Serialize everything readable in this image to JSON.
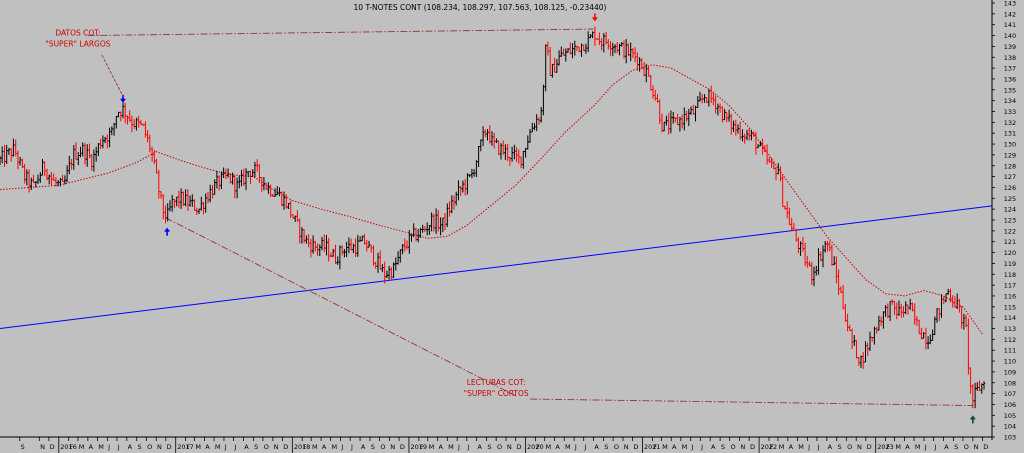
{
  "chart_data": {
    "type": "candlestick",
    "title": "10 T-NOTES CONT (108.234, 108.297, 107.563, 108.125, -0.23440)",
    "y_range": [
      103,
      143
    ],
    "x_range": [
      "2015-07-01",
      "2023-12-31"
    ],
    "y_ticks": [
      103,
      104,
      105,
      106,
      107,
      108,
      109,
      110,
      111,
      112,
      113,
      114,
      115,
      116,
      117,
      118,
      119,
      120,
      121,
      122,
      123,
      124,
      125,
      126,
      127,
      128,
      129,
      130,
      131,
      132,
      133,
      134,
      135,
      136,
      137,
      138,
      139,
      140,
      141,
      142,
      143
    ],
    "x_month_labels": [
      {
        "d": "2015-09-01",
        "t": "S"
      },
      {
        "d": "2015-11-01",
        "t": "N"
      },
      {
        "d": "2015-12-01",
        "t": "D"
      },
      {
        "d": "2016-01-01",
        "t": "2016"
      },
      {
        "d": "2016-02-01",
        "t": "F"
      },
      {
        "d": "2016-03-01",
        "t": "M"
      },
      {
        "d": "2016-04-01",
        "t": "A"
      },
      {
        "d": "2016-05-01",
        "t": "M"
      },
      {
        "d": "2016-06-01",
        "t": "J"
      },
      {
        "d": "2016-07-01",
        "t": "J"
      },
      {
        "d": "2016-08-01",
        "t": "A"
      },
      {
        "d": "2016-09-01",
        "t": "S"
      },
      {
        "d": "2016-10-01",
        "t": "O"
      },
      {
        "d": "2016-11-01",
        "t": "N"
      },
      {
        "d": "2016-12-01",
        "t": "D"
      },
      {
        "d": "2017-01-01",
        "t": "2017"
      },
      {
        "d": "2017-02-01",
        "t": "F"
      },
      {
        "d": "2017-03-01",
        "t": "M"
      },
      {
        "d": "2017-04-01",
        "t": "A"
      },
      {
        "d": "2017-05-01",
        "t": "M"
      },
      {
        "d": "2017-06-01",
        "t": "J"
      },
      {
        "d": "2017-07-01",
        "t": "J"
      },
      {
        "d": "2017-08-01",
        "t": "A"
      },
      {
        "d": "2017-09-01",
        "t": "S"
      },
      {
        "d": "2017-10-01",
        "t": "O"
      },
      {
        "d": "2017-11-01",
        "t": "N"
      },
      {
        "d": "2017-12-01",
        "t": "D"
      },
      {
        "d": "2018-01-01",
        "t": "2018"
      },
      {
        "d": "2018-02-01",
        "t": "F"
      },
      {
        "d": "2018-03-01",
        "t": "M"
      },
      {
        "d": "2018-04-01",
        "t": "A"
      },
      {
        "d": "2018-05-01",
        "t": "M"
      },
      {
        "d": "2018-06-01",
        "t": "J"
      },
      {
        "d": "2018-07-01",
        "t": "J"
      },
      {
        "d": "2018-08-01",
        "t": "A"
      },
      {
        "d": "2018-09-01",
        "t": "S"
      },
      {
        "d": "2018-10-01",
        "t": "O"
      },
      {
        "d": "2018-11-01",
        "t": "N"
      },
      {
        "d": "2018-12-01",
        "t": "D"
      },
      {
        "d": "2019-01-01",
        "t": "2019"
      },
      {
        "d": "2019-02-01",
        "t": "F"
      },
      {
        "d": "2019-03-01",
        "t": "M"
      },
      {
        "d": "2019-04-01",
        "t": "A"
      },
      {
        "d": "2019-05-01",
        "t": "M"
      },
      {
        "d": "2019-06-01",
        "t": "J"
      },
      {
        "d": "2019-07-01",
        "t": "J"
      },
      {
        "d": "2019-08-01",
        "t": "A"
      },
      {
        "d": "2019-09-01",
        "t": "S"
      },
      {
        "d": "2019-10-01",
        "t": "O"
      },
      {
        "d": "2019-11-01",
        "t": "N"
      },
      {
        "d": "2019-12-01",
        "t": "D"
      },
      {
        "d": "2020-01-01",
        "t": "2020"
      },
      {
        "d": "2020-02-01",
        "t": "F"
      },
      {
        "d": "2020-03-01",
        "t": "M"
      },
      {
        "d": "2020-04-01",
        "t": "A"
      },
      {
        "d": "2020-05-01",
        "t": "M"
      },
      {
        "d": "2020-06-01",
        "t": "J"
      },
      {
        "d": "2020-07-01",
        "t": "J"
      },
      {
        "d": "2020-08-01",
        "t": "A"
      },
      {
        "d": "2020-09-01",
        "t": "S"
      },
      {
        "d": "2020-10-01",
        "t": "O"
      },
      {
        "d": "2020-11-01",
        "t": "N"
      },
      {
        "d": "2020-12-01",
        "t": "D"
      },
      {
        "d": "2021-01-01",
        "t": "2021"
      },
      {
        "d": "2021-02-01",
        "t": "F"
      },
      {
        "d": "2021-03-01",
        "t": "M"
      },
      {
        "d": "2021-04-01",
        "t": "A"
      },
      {
        "d": "2021-05-01",
        "t": "M"
      },
      {
        "d": "2021-06-01",
        "t": "J"
      },
      {
        "d": "2021-07-01",
        "t": "J"
      },
      {
        "d": "2021-08-01",
        "t": "A"
      },
      {
        "d": "2021-09-01",
        "t": "S"
      },
      {
        "d": "2021-10-01",
        "t": "O"
      },
      {
        "d": "2021-11-01",
        "t": "N"
      },
      {
        "d": "2021-12-01",
        "t": "D"
      },
      {
        "d": "2022-01-01",
        "t": "2022"
      },
      {
        "d": "2022-02-01",
        "t": "F"
      },
      {
        "d": "2022-03-01",
        "t": "M"
      },
      {
        "d": "2022-04-01",
        "t": "A"
      },
      {
        "d": "2022-05-01",
        "t": "M"
      },
      {
        "d": "2022-06-01",
        "t": "J"
      },
      {
        "d": "2022-07-01",
        "t": "J"
      },
      {
        "d": "2022-08-01",
        "t": "A"
      },
      {
        "d": "2022-09-01",
        "t": "S"
      },
      {
        "d": "2022-10-01",
        "t": "O"
      },
      {
        "d": "2022-11-01",
        "t": "N"
      },
      {
        "d": "2022-12-01",
        "t": "D"
      },
      {
        "d": "2023-01-01",
        "t": "2023"
      },
      {
        "d": "2023-02-01",
        "t": "F"
      },
      {
        "d": "2023-03-01",
        "t": "M"
      },
      {
        "d": "2023-04-01",
        "t": "A"
      },
      {
        "d": "2023-05-01",
        "t": "M"
      },
      {
        "d": "2023-06-01",
        "t": "J"
      },
      {
        "d": "2023-07-01",
        "t": "J"
      },
      {
        "d": "2023-08-01",
        "t": "A"
      },
      {
        "d": "2023-09-01",
        "t": "S"
      },
      {
        "d": "2023-10-01",
        "t": "O"
      },
      {
        "d": "2023-11-01",
        "t": "N"
      },
      {
        "d": "2023-12-01",
        "t": "D"
      }
    ],
    "price_path": [
      [
        "2015-07-01",
        128.5
      ],
      [
        "2015-08-15",
        129.5
      ],
      [
        "2015-09-15",
        127.0
      ],
      [
        "2015-10-15",
        126.0
      ],
      [
        "2015-11-15",
        128.0
      ],
      [
        "2015-12-15",
        126.5
      ],
      [
        "2016-01-15",
        126.0
      ],
      [
        "2016-02-15",
        129.0
      ],
      [
        "2016-03-15",
        129.5
      ],
      [
        "2016-04-15",
        128.5
      ],
      [
        "2016-05-15",
        130.5
      ],
      [
        "2016-06-15",
        131.0
      ],
      [
        "2016-07-01",
        133.0
      ],
      [
        "2016-07-20",
        133.2
      ],
      [
        "2016-08-20",
        132.0
      ],
      [
        "2016-09-20",
        131.5
      ],
      [
        "2016-10-15",
        129.5
      ],
      [
        "2016-11-01",
        127.0
      ],
      [
        "2016-11-20",
        124.0
      ],
      [
        "2016-12-05",
        123.2
      ],
      [
        "2016-12-20",
        124.5
      ],
      [
        "2017-01-15",
        125.0
      ],
      [
        "2017-02-15",
        124.5
      ],
      [
        "2017-03-15",
        124.0
      ],
      [
        "2017-04-15",
        125.5
      ],
      [
        "2017-05-15",
        126.5
      ],
      [
        "2017-06-15",
        127.0
      ],
      [
        "2017-07-15",
        126.0
      ],
      [
        "2017-08-15",
        127.5
      ],
      [
        "2017-09-10",
        127.5
      ],
      [
        "2017-10-15",
        126.0
      ],
      [
        "2017-11-15",
        125.5
      ],
      [
        "2017-12-15",
        124.5
      ],
      [
        "2018-01-15",
        122.5
      ],
      [
        "2018-02-15",
        121.0
      ],
      [
        "2018-03-15",
        120.5
      ],
      [
        "2018-04-15",
        120.5
      ],
      [
        "2018-05-15",
        119.5
      ],
      [
        "2018-06-15",
        120.5
      ],
      [
        "2018-07-15",
        120.5
      ],
      [
        "2018-08-15",
        121.0
      ],
      [
        "2018-09-15",
        119.5
      ],
      [
        "2018-10-15",
        118.0
      ],
      [
        "2018-11-15",
        118.5
      ],
      [
        "2018-12-15",
        120.5
      ],
      [
        "2019-01-15",
        121.5
      ],
      [
        "2019-02-15",
        122.0
      ],
      [
        "2019-03-15",
        123.0
      ],
      [
        "2019-04-15",
        122.5
      ],
      [
        "2019-05-15",
        124.5
      ],
      [
        "2019-06-15",
        126.0
      ],
      [
        "2019-07-15",
        127.0
      ],
      [
        "2019-08-15",
        130.0
      ],
      [
        "2019-09-01",
        131.5
      ],
      [
        "2019-09-20",
        130.0
      ],
      [
        "2019-10-15",
        129.5
      ],
      [
        "2019-11-15",
        129.0
      ],
      [
        "2019-12-15",
        128.5
      ],
      [
        "2020-01-20",
        131.5
      ],
      [
        "2020-02-20",
        133.0
      ],
      [
        "2020-03-05",
        139.0
      ],
      [
        "2020-03-20",
        136.5
      ],
      [
        "2020-04-15",
        138.0
      ],
      [
        "2020-05-15",
        138.5
      ],
      [
        "2020-06-15",
        139.0
      ],
      [
        "2020-07-15",
        139.5
      ],
      [
        "2020-08-05",
        140.2
      ],
      [
        "2020-08-25",
        139.5
      ],
      [
        "2020-09-15",
        139.5
      ],
      [
        "2020-10-15",
        139.0
      ],
      [
        "2020-11-15",
        138.5
      ],
      [
        "2020-12-15",
        138.0
      ],
      [
        "2021-01-15",
        136.5
      ],
      [
        "2021-02-15",
        134.0
      ],
      [
        "2021-03-05",
        131.5
      ],
      [
        "2021-04-15",
        132.0
      ],
      [
        "2021-05-15",
        132.5
      ],
      [
        "2021-06-15",
        133.0
      ],
      [
        "2021-07-15",
        134.5
      ],
      [
        "2021-08-15",
        134.0
      ],
      [
        "2021-09-15",
        132.5
      ],
      [
        "2021-10-15",
        131.5
      ],
      [
        "2021-11-15",
        131.0
      ],
      [
        "2021-12-15",
        130.5
      ],
      [
        "2022-01-15",
        129.0
      ],
      [
        "2022-02-15",
        127.5
      ],
      [
        "2022-03-01",
        128.0
      ],
      [
        "2022-03-15",
        125.0
      ],
      [
        "2022-04-15",
        122.0
      ],
      [
        "2022-05-15",
        120.0
      ],
      [
        "2022-06-15",
        118.0
      ],
      [
        "2022-07-15",
        120.0
      ],
      [
        "2022-08-01",
        121.0
      ],
      [
        "2022-08-20",
        119.0
      ],
      [
        "2022-09-15",
        116.0
      ],
      [
        "2022-10-15",
        112.0
      ],
      [
        "2022-11-15",
        110.0
      ],
      [
        "2022-12-15",
        112.0
      ],
      [
        "2023-01-15",
        114.0
      ],
      [
        "2023-02-15",
        115.0
      ],
      [
        "2023-03-15",
        114.5
      ],
      [
        "2023-04-15",
        115.0
      ],
      [
        "2023-05-15",
        113.0
      ],
      [
        "2023-06-15",
        112.0
      ],
      [
        "2023-07-15",
        114.5
      ],
      [
        "2023-08-15",
        116.5
      ],
      [
        "2023-09-15",
        115.0
      ],
      [
        "2023-10-15",
        112.5
      ],
      [
        "2023-10-20",
        108.0
      ],
      [
        "2023-11-01",
        106.5
      ],
      [
        "2023-11-20",
        107.5
      ],
      [
        "2023-12-10",
        108.125
      ]
    ],
    "moving_average": [
      [
        "2015-07-01",
        125.8
      ],
      [
        "2016-01-01",
        126.2
      ],
      [
        "2016-06-01",
        127.3
      ],
      [
        "2016-09-01",
        128.3
      ],
      [
        "2016-11-01",
        129.3
      ],
      [
        "2017-01-15",
        128.5
      ],
      [
        "2017-04-01",
        127.8
      ],
      [
        "2017-06-15",
        127.2
      ],
      [
        "2017-09-01",
        127.0
      ],
      [
        "2017-11-01",
        125.8
      ],
      [
        "2018-01-01",
        124.8
      ],
      [
        "2018-04-01",
        124.0
      ],
      [
        "2018-07-01",
        123.3
      ],
      [
        "2018-10-01",
        122.5
      ],
      [
        "2019-01-01",
        121.8
      ],
      [
        "2019-03-01",
        121.3
      ],
      [
        "2019-05-01",
        121.5
      ],
      [
        "2019-07-01",
        122.5
      ],
      [
        "2019-09-01",
        124.0
      ],
      [
        "2019-12-01",
        126.2
      ],
      [
        "2020-03-01",
        129.0
      ],
      [
        "2020-05-01",
        131.0
      ],
      [
        "2020-08-01",
        133.5
      ],
      [
        "2020-10-01",
        135.5
      ],
      [
        "2020-12-01",
        136.8
      ],
      [
        "2021-02-01",
        137.3
      ],
      [
        "2021-04-01",
        137.0
      ],
      [
        "2021-06-01",
        136.0
      ],
      [
        "2021-08-01",
        135.0
      ],
      [
        "2021-10-01",
        133.5
      ],
      [
        "2021-12-01",
        131.5
      ],
      [
        "2022-02-01",
        129.0
      ],
      [
        "2022-04-01",
        126.5
      ],
      [
        "2022-06-01",
        124.0
      ],
      [
        "2022-08-01",
        121.5
      ],
      [
        "2022-10-01",
        119.5
      ],
      [
        "2022-12-01",
        117.5
      ],
      [
        "2023-02-01",
        116.2
      ],
      [
        "2023-04-01",
        116.0
      ],
      [
        "2023-06-01",
        116.5
      ],
      [
        "2023-08-01",
        116.0
      ],
      [
        "2023-10-01",
        115.0
      ],
      [
        "2023-12-01",
        112.5
      ]
    ],
    "trend_line": [
      [
        "2015-07-01",
        113.0
      ],
      [
        "2023-12-31",
        124.3
      ]
    ],
    "guide_lines": [
      {
        "name": "top",
        "from": [
          "2016-04-01",
          140.0
        ],
        "to": [
          "2020-08-01",
          140.6
        ]
      },
      {
        "name": "bottom",
        "from": [
          "2020-01-15",
          106.5
        ],
        "to": [
          "2023-11-01",
          105.9
        ]
      },
      {
        "name": "diagonal",
        "from": [
          "2016-12-01",
          123.2
        ],
        "to": [
          "2019-12-01",
          106.8
        ]
      }
    ],
    "arrows": [
      {
        "name": "blue-down",
        "date": "2016-07-20",
        "price": 133.9,
        "dir": "down",
        "color": "#0000ff"
      },
      {
        "name": "blue-up",
        "date": "2016-12-05",
        "price": 122.2,
        "dir": "up",
        "color": "#0000ff"
      },
      {
        "name": "red-down",
        "date": "2020-08-05",
        "price": 141.4,
        "dir": "down",
        "color": "#ff0000"
      },
      {
        "name": "green-up",
        "date": "2023-11-01",
        "price": 104.9,
        "dir": "up",
        "color": "#004d40"
      }
    ],
    "annotations": [
      {
        "lines": [
          "DATOS COT:",
          "\"SUPER\" LARGOS"
        ],
        "date": "2016-03-01",
        "price": 140.0,
        "anchor": "middle",
        "color": "#cc0000"
      },
      {
        "lines": [
          "LECTURAS COT:",
          "\"SUPER\" CORTOS"
        ],
        "date": "2019-10-01",
        "price": 107.8,
        "anchor": "middle",
        "color": "#cc0000"
      }
    ],
    "colors": {
      "background": "#c0c0c0",
      "up": "#000000",
      "down": "#ff0000",
      "trend": "#0000ff",
      "ma": "#cc0000",
      "guide": "#993333"
    }
  }
}
